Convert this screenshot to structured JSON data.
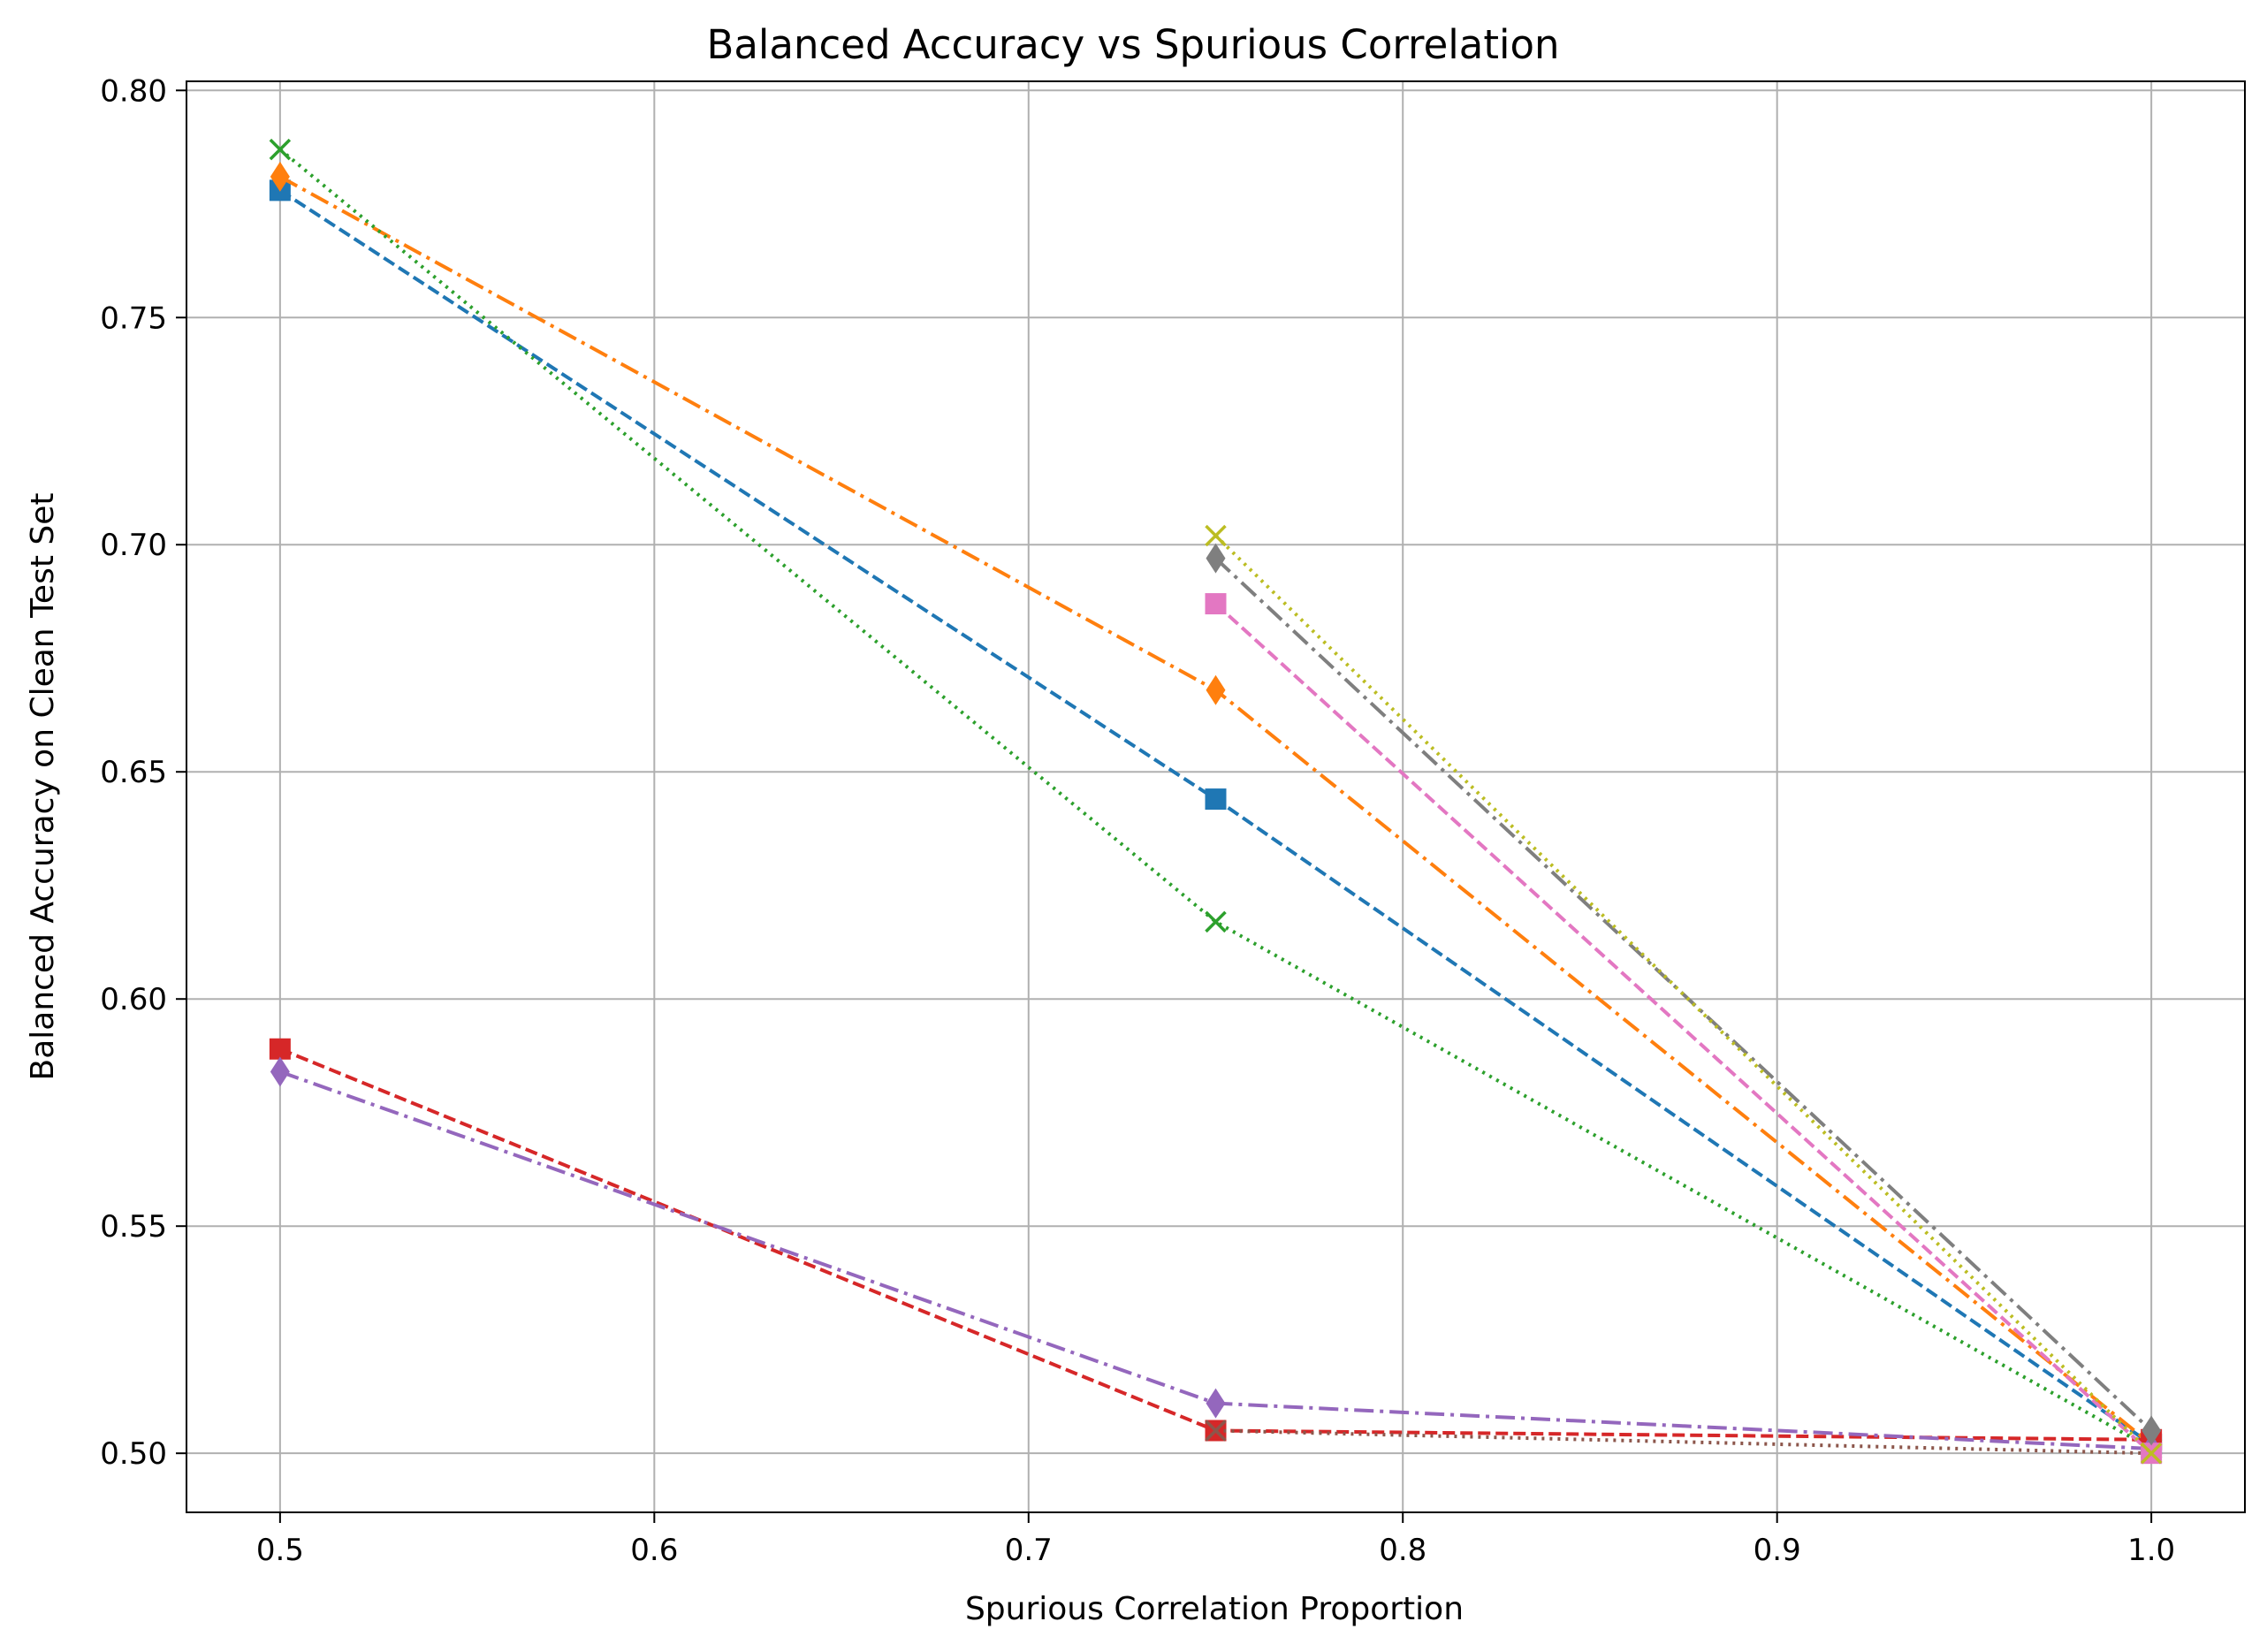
{
  "chart_data": {
    "type": "line",
    "title": "Balanced Accuracy vs Spurious Correlation",
    "xlabel": "Spurious Correlation Proportion",
    "ylabel": "Balanced Accuracy on Clean Test Set",
    "xlim": [
      0.475,
      1.025
    ],
    "ylim": [
      0.487,
      0.802
    ],
    "xticks": [
      0.5,
      0.6,
      0.7,
      0.8,
      0.9,
      1.0
    ],
    "xtick_labels": [
      "0.5",
      "0.6",
      "0.7",
      "0.8",
      "0.9",
      "1.0"
    ],
    "yticks": [
      0.5,
      0.55,
      0.6,
      0.65,
      0.7,
      0.75,
      0.8
    ],
    "ytick_labels": [
      "0.50",
      "0.55",
      "0.60",
      "0.65",
      "0.70",
      "0.75",
      "0.80"
    ],
    "grid": true,
    "series": [
      {
        "color": "#1f77b4",
        "dash": "dashed",
        "marker": "square",
        "x": [
          0.5,
          0.75,
          1.0
        ],
        "y": [
          0.778,
          0.644,
          0.502
        ]
      },
      {
        "color": "#ff7f0e",
        "dash": "dashdot",
        "marker": "diamond",
        "x": [
          0.5,
          0.75,
          1.0
        ],
        "y": [
          0.781,
          0.668,
          0.502
        ]
      },
      {
        "color": "#2ca02c",
        "dash": "dotted",
        "marker": "x",
        "x": [
          0.5,
          0.75,
          1.0
        ],
        "y": [
          0.787,
          0.617,
          0.501
        ]
      },
      {
        "color": "#d62728",
        "dash": "dashed",
        "marker": "square",
        "x": [
          0.5,
          0.75,
          1.0
        ],
        "y": [
          0.589,
          0.505,
          0.503
        ]
      },
      {
        "color": "#9467bd",
        "dash": "dashdot",
        "marker": "diamond",
        "x": [
          0.5,
          0.75,
          1.0
        ],
        "y": [
          0.584,
          0.511,
          0.501
        ]
      },
      {
        "color": "#8c564b",
        "dash": "dotted",
        "marker": "x",
        "x": [
          0.75,
          1.0
        ],
        "y": [
          0.505,
          0.5
        ]
      },
      {
        "color": "#e377c2",
        "dash": "dashed",
        "marker": "square",
        "x": [
          0.75,
          1.0
        ],
        "y": [
          0.687,
          0.5
        ]
      },
      {
        "color": "#7f7f7f",
        "dash": "dashdot",
        "marker": "diamond",
        "x": [
          0.75,
          1.0
        ],
        "y": [
          0.697,
          0.505
        ]
      },
      {
        "color": "#bcbd22",
        "dash": "dotted",
        "marker": "x",
        "x": [
          0.75,
          1.0
        ],
        "y": [
          0.702,
          0.5
        ]
      }
    ]
  }
}
